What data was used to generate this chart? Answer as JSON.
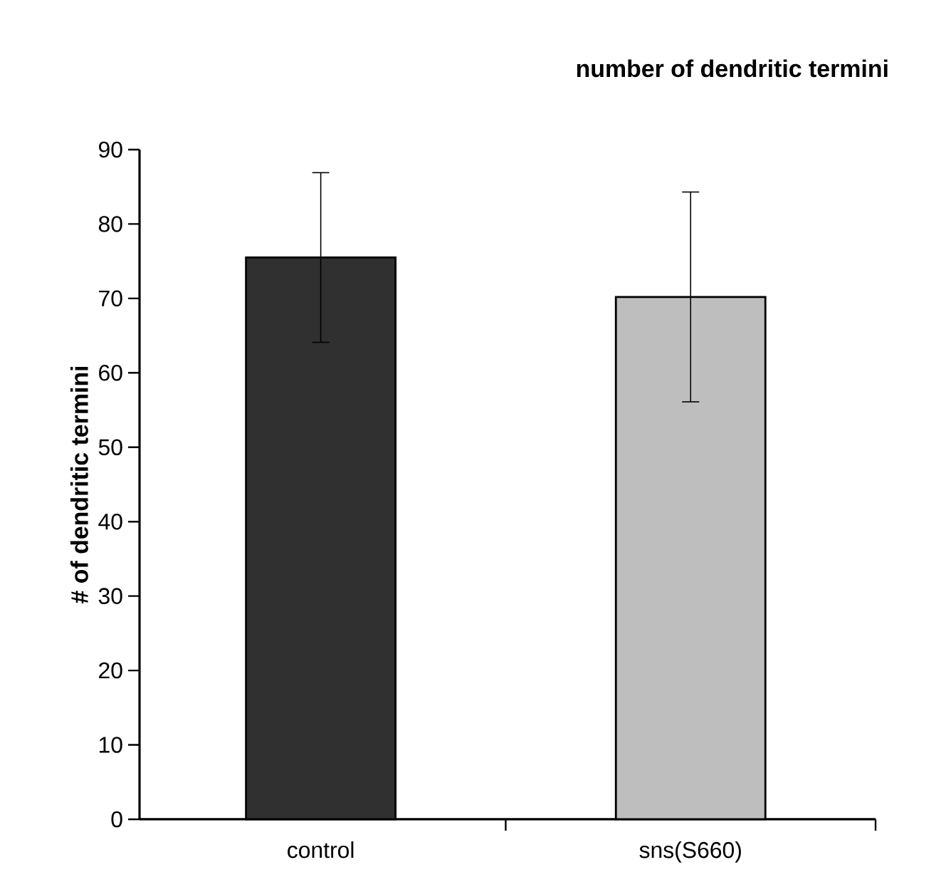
{
  "chart_data": {
    "type": "bar",
    "title": "number of dendritic termini",
    "ylabel": "# of dendritic termini",
    "categories": [
      "control",
      "sns(S660)"
    ],
    "values": [
      75.5,
      70.2
    ],
    "errors": [
      11.4,
      14.1
    ],
    "colors": [
      "#303030",
      "#bebebe"
    ],
    "ylim": [
      0,
      90
    ],
    "yticks": [
      0,
      10,
      20,
      30,
      40,
      50,
      60,
      70,
      80,
      90
    ]
  }
}
